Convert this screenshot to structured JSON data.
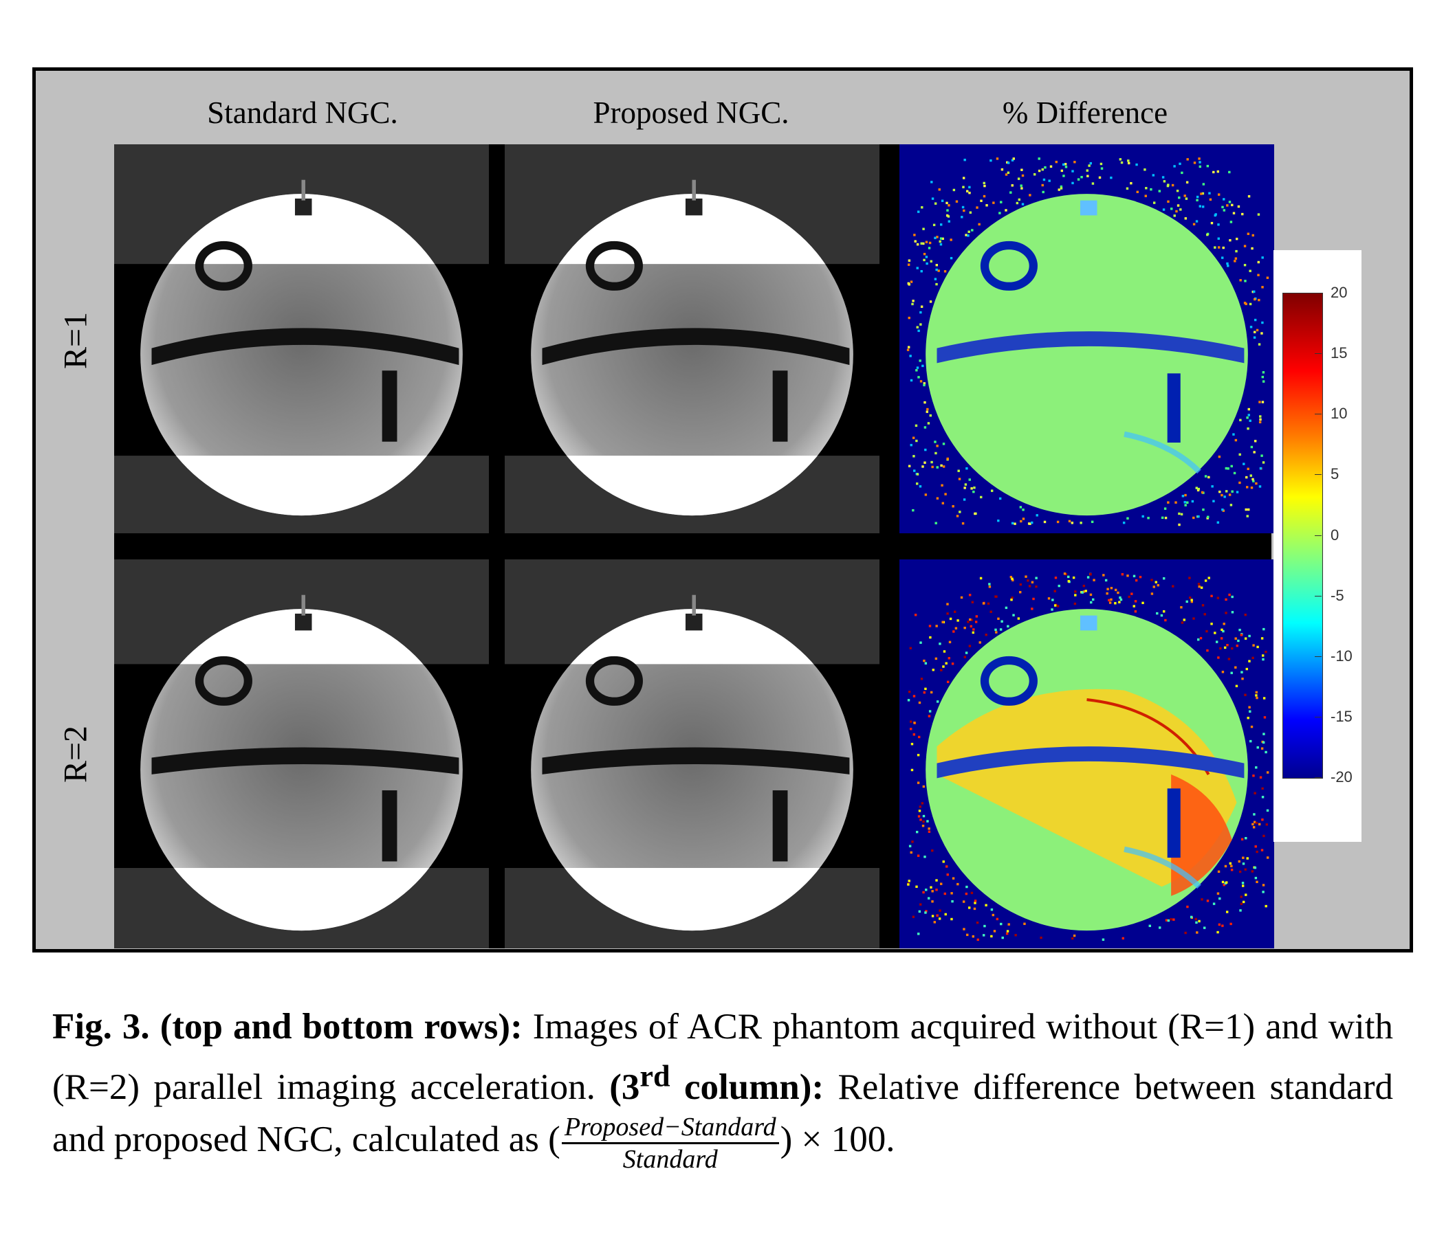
{
  "figure": {
    "column_headers": [
      "Standard NGC.",
      "Proposed NGC.",
      "% Difference"
    ],
    "row_labels": [
      "R=1",
      "R=2"
    ],
    "colorbar": {
      "ticks": [
        "20",
        "15",
        "10",
        "5",
        "0",
        "-5",
        "-10",
        "-15",
        "-20"
      ],
      "range": [
        -20,
        20
      ],
      "colormap": "jet"
    },
    "colors": {
      "frame_background": "#c0c0c0",
      "diff_background": "#00008f",
      "diff_phantom": "#8cf07a"
    }
  },
  "caption": {
    "label": "Fig. 3.",
    "part1_bold": "(top and bottom rows):",
    "part1_text": "Images of ACR phantom acquired without (R=1) and with (R=2) parallel imaging acceleration.",
    "part2_bold_pre": "(3",
    "part2_sup": "rd",
    "part2_bold_post": "column):",
    "part2_text": "Relative difference between standard and proposed NGC, calculated as",
    "formula_open": "(",
    "formula_numerator": "Proposed−Standard",
    "formula_denominator": "Standard",
    "formula_close": ") × 100."
  }
}
